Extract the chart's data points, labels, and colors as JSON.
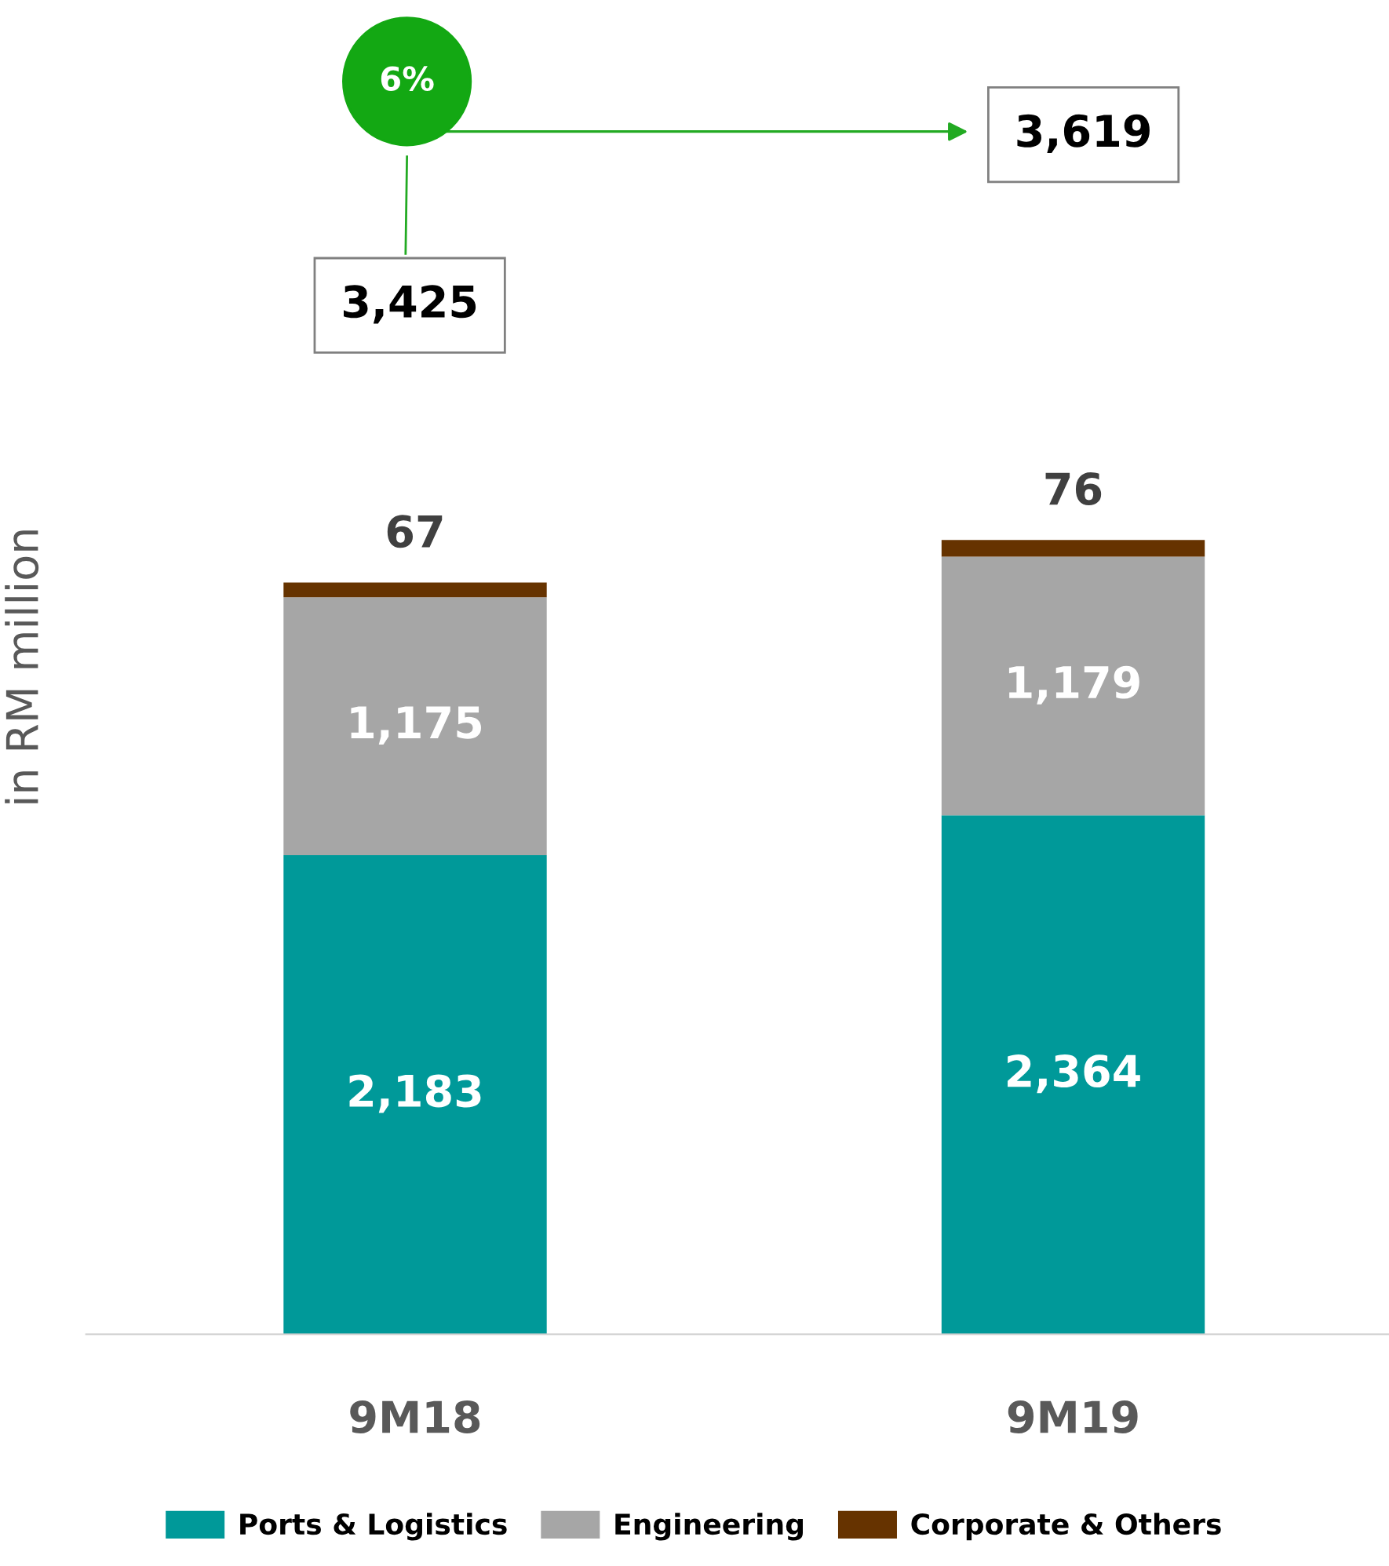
{
  "chart_data": {
    "type": "bar",
    "stacked": true,
    "ylabel": "in RM million",
    "categories": [
      "9M18",
      "9M19"
    ],
    "series": [
      {
        "name": "Ports & Logistics",
        "color": "#009999",
        "values": [
          2183,
          2364
        ],
        "value_labels": [
          "2,183",
          "2,364"
        ]
      },
      {
        "name": "Engineering",
        "color": "#a6a6a6",
        "values": [
          1175,
          1179
        ],
        "value_labels": [
          "1,175",
          "1,179"
        ]
      },
      {
        "name": "Corporate & Others",
        "color": "#663300",
        "values": [
          67,
          76
        ],
        "value_labels": [
          "67",
          "76"
        ]
      }
    ],
    "annotations": [
      "6%",
      "3,425",
      "3,619"
    ],
    "legend": "bottom",
    "grid": false
  }
}
